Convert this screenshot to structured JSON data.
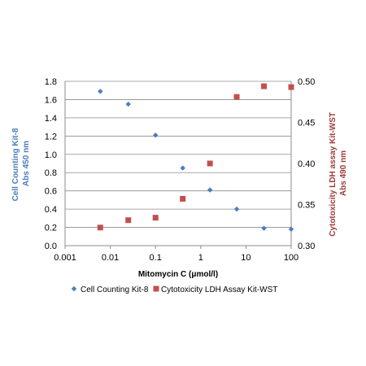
{
  "chart_data": {
    "type": "scatter",
    "title": "",
    "xlabel": "Mitomycin  C (μmol/l)",
    "xscale": "log",
    "xlim": [
      0.001,
      100
    ],
    "xticks": [
      "0.001",
      "0.01",
      "0.1",
      "1",
      "10",
      "100"
    ],
    "y_left": {
      "label_lines": [
        "Cell Counting Kit-8",
        "Abs 450 nm"
      ],
      "ylim": [
        0,
        1.8
      ],
      "ticks": [
        "0.0",
        "0.2",
        "0.4",
        "0.6",
        "0.8",
        "1.0",
        "1.2",
        "1.4",
        "1.6",
        "1.8"
      ],
      "color": "#4a7ebb"
    },
    "y_right": {
      "label_lines": [
        "Cytotoxicity LDH assay Kit-WST",
        "Abs 490 nm"
      ],
      "ylim": [
        0.3,
        0.5
      ],
      "ticks": [
        "0.30",
        "0.35",
        "0.40",
        "0.45",
        "0.50"
      ],
      "color": "#9e3a38"
    },
    "grid": "horizontal",
    "legend_position": "bottom",
    "series": [
      {
        "name": "Cell Counting Kit-8",
        "axis": "left",
        "marker": "diamond",
        "color": "#4a7ebb",
        "x": [
          0.006,
          0.025,
          0.1,
          0.4,
          1.6,
          6.25,
          25,
          100
        ],
        "y": [
          1.69,
          1.55,
          1.21,
          0.85,
          0.61,
          0.4,
          0.19,
          0.18
        ]
      },
      {
        "name": "Cytotoxicity LDH Assay Kit-WST",
        "axis": "right",
        "marker": "square",
        "color": "#c0504d",
        "x": [
          0.006,
          0.025,
          0.1,
          0.4,
          1.6,
          6.25,
          25,
          100
        ],
        "y": [
          0.322,
          0.331,
          0.334,
          0.357,
          0.4,
          0.481,
          0.494,
          0.493
        ]
      }
    ]
  }
}
